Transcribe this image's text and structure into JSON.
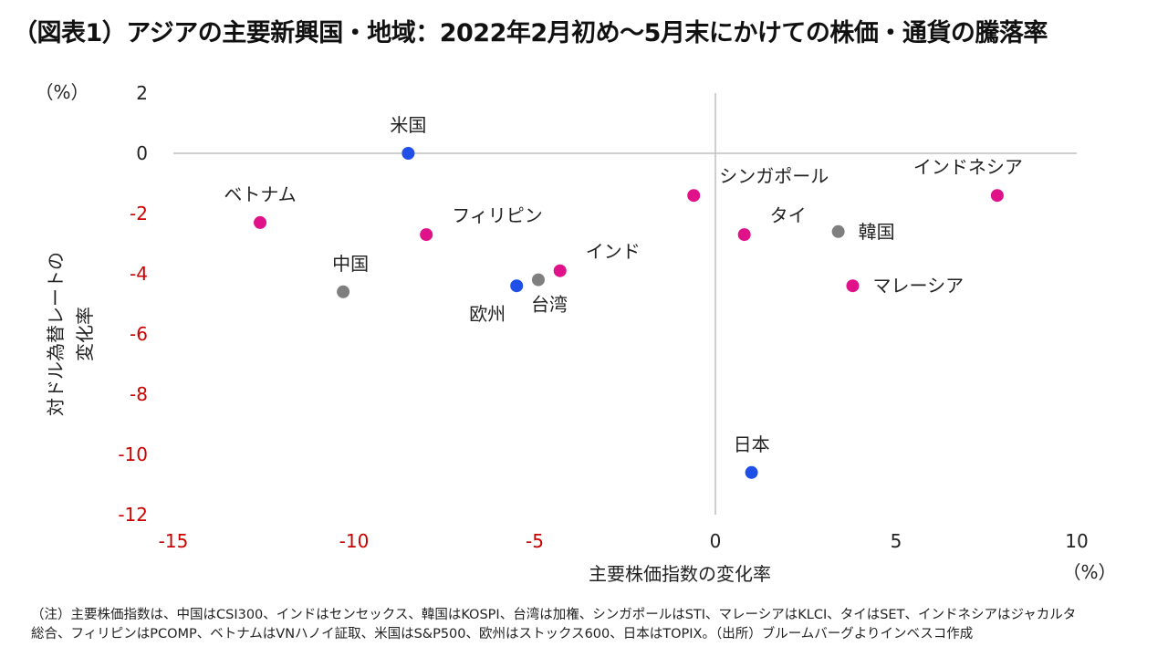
{
  "title": "（図表1）アジアの主要新興国・地域：2022年2月初め〜5月末にかけての株価・通貨の騰落率",
  "chart_data": {
    "type": "scatter",
    "title": "（図表1）アジアの主要新興国・地域：2022年2月初め〜5月末にかけての株価・通貨の騰落率",
    "xlabel": "主要株価指数の変化率",
    "ylabel": "対ドル為替レートの変化率",
    "x_unit": "（%）",
    "y_unit": "（%）",
    "xlim": [
      -15,
      10
    ],
    "ylim": [
      -12,
      2
    ],
    "x_ticks": [
      -15,
      -10,
      -5,
      0,
      5,
      10
    ],
    "y_ticks": [
      2,
      0,
      -2,
      -4,
      -6,
      -8,
      -10,
      -12
    ],
    "negative_tick_color": "#cc0000",
    "positive_tick_color": "#222222",
    "grid": false,
    "categories": {
      "asia": {
        "color": "#e0128a"
      },
      "developed": {
        "color": "#1f4fe6"
      },
      "other": {
        "color": "#7f7f7f"
      }
    },
    "points": [
      {
        "label": "米国",
        "x": -8.5,
        "y": 0.0,
        "group": "developed",
        "anchor": "above"
      },
      {
        "label": "ベトナム",
        "x": -12.6,
        "y": -2.3,
        "group": "asia",
        "anchor": "above"
      },
      {
        "label": "フィリピン",
        "x": -8.0,
        "y": -2.7,
        "group": "asia",
        "anchor": "upper-right"
      },
      {
        "label": "中国",
        "x": -10.3,
        "y": -4.6,
        "group": "other",
        "anchor": "upper-left"
      },
      {
        "label": "欧州",
        "x": -5.5,
        "y": -4.4,
        "group": "developed",
        "anchor": "lower-left"
      },
      {
        "label": "台湾",
        "x": -4.9,
        "y": -4.2,
        "group": "other",
        "anchor": "lower-right"
      },
      {
        "label": "インド",
        "x": -4.3,
        "y": -3.9,
        "group": "asia",
        "anchor": "upper-right"
      },
      {
        "label": "シンガポール",
        "x": -0.6,
        "y": -1.4,
        "group": "asia",
        "anchor": "upper-right"
      },
      {
        "label": "タイ",
        "x": 0.8,
        "y": -2.7,
        "group": "asia",
        "anchor": "upper-right"
      },
      {
        "label": "韓国",
        "x": 3.4,
        "y": -2.6,
        "group": "other",
        "anchor": "right"
      },
      {
        "label": "マレーシア",
        "x": 3.8,
        "y": -4.4,
        "group": "asia",
        "anchor": "right"
      },
      {
        "label": "インドネシア",
        "x": 7.8,
        "y": -1.4,
        "group": "asia",
        "anchor": "upper-left"
      },
      {
        "label": "日本",
        "x": 1.0,
        "y": -10.6,
        "group": "developed",
        "anchor": "above"
      }
    ]
  },
  "footnote": {
    "line1": "（注）主要株価指数は、中国はCSI300、インドはセンセックス、韓国はKOSPI、台湾は加権、シンガポールはSTI、マレーシアはKLCI、タイはSET、インドネシアはジャカルタ",
    "line2": "総合、フィリピンはPCOMP、ベトナムはVNハノイ証取、米国はS&P500、欧州はストックス600、日本はTOPIX。（出所）ブルームバーグよりインベスコ作成"
  }
}
